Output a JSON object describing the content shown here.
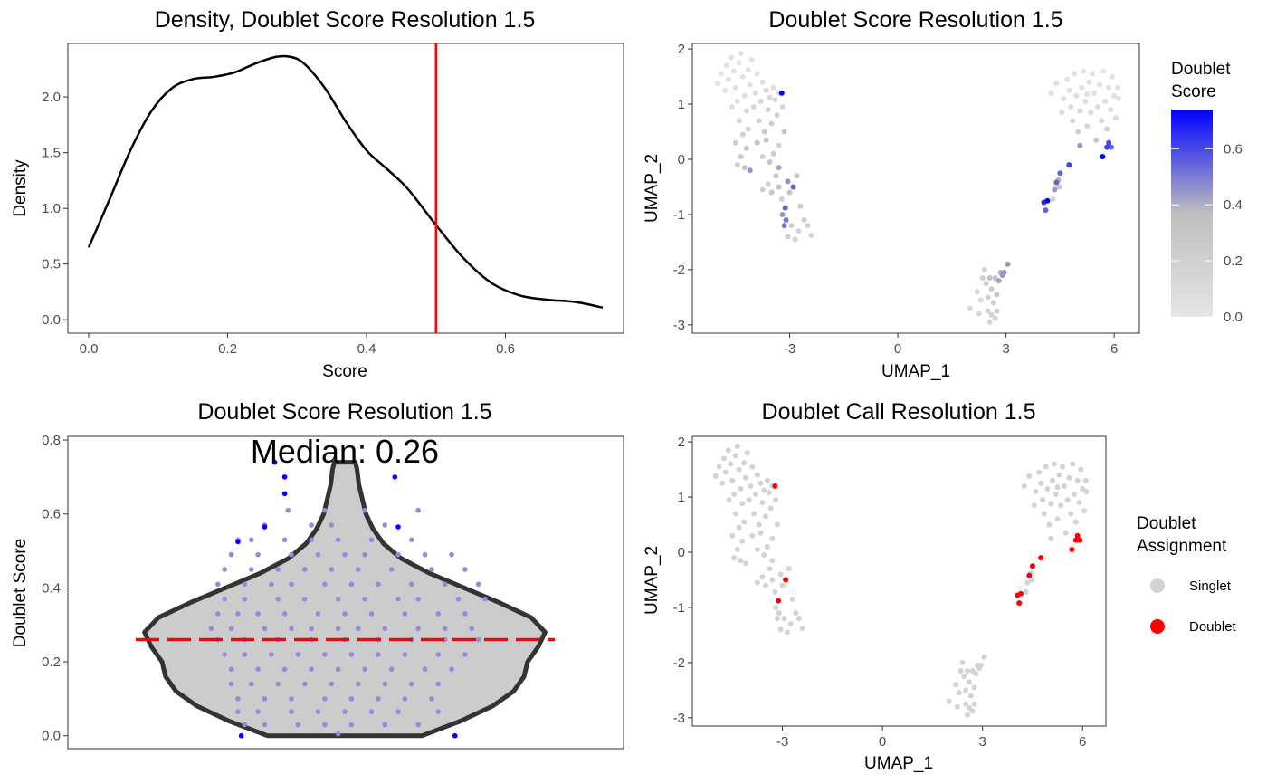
{
  "colors": {
    "low": "#e5e5e5",
    "mid": "#bebebe",
    "high": "#0000ff",
    "density_line": "#000000",
    "threshold": "#ff0000",
    "violin_fill": "#cccccc",
    "violin_stroke": "#333333",
    "violin_points": "#8f8fd8",
    "outlier": "#0000ff",
    "singlet": "#d3d3d3",
    "doublet": "#ff0000"
  },
  "chart_data": [
    {
      "id": "density",
      "type": "line",
      "title": "Density, Doublet Score Resolution 1.5",
      "xlabel": "Score",
      "ylabel": "Density",
      "xlim": [
        -0.03,
        0.77
      ],
      "ylim": [
        -0.12,
        2.48
      ],
      "xticks": [
        0,
        0.2,
        0.4,
        0.6
      ],
      "xtick_labels": [
        "0.0",
        "0.2",
        "0.4",
        "0.6"
      ],
      "yticks": [
        0,
        0.5,
        1,
        1.5,
        2
      ],
      "ytick_labels": [
        "0.0",
        "0.5",
        "1.0",
        "1.5",
        "2.0"
      ],
      "threshold": 0.5,
      "x": [
        0,
        0.03,
        0.06,
        0.09,
        0.12,
        0.15,
        0.18,
        0.21,
        0.24,
        0.27,
        0.29,
        0.31,
        0.34,
        0.37,
        0.4,
        0.43,
        0.46,
        0.5,
        0.54,
        0.58,
        0.62,
        0.66,
        0.7,
        0.74
      ],
      "y": [
        0.65,
        1.08,
        1.52,
        1.87,
        2.08,
        2.16,
        2.18,
        2.22,
        2.3,
        2.36,
        2.36,
        2.3,
        2.08,
        1.78,
        1.52,
        1.35,
        1.17,
        0.85,
        0.55,
        0.33,
        0.22,
        0.18,
        0.16,
        0.11
      ]
    },
    {
      "id": "umap-score",
      "type": "scatter",
      "title": "Doublet Score Resolution 1.5",
      "xlabel": "UMAP_1",
      "ylabel": "UMAP_2",
      "xlim": [
        -5.7,
        6.7
      ],
      "ylim": [
        -3.15,
        2.1
      ],
      "xticks": [
        -3,
        0,
        3,
        6
      ],
      "xtick_labels": [
        "-3",
        "0",
        "3",
        "6"
      ],
      "yticks": [
        -3,
        -2,
        -1,
        0,
        1,
        2
      ],
      "ytick_labels": [
        "-3",
        "-2",
        "-1",
        "0",
        "1",
        "2"
      ],
      "legend": {
        "title_lines": [
          "Doublet",
          "Score"
        ],
        "placement": "right",
        "ticks": [
          0,
          0.2,
          0.4,
          0.6
        ],
        "tick_labels": [
          "0.0",
          "0.2",
          "0.4",
          "0.6"
        ],
        "range": [
          0,
          0.74
        ]
      }
    },
    {
      "id": "violin",
      "type": "violin",
      "title": "Doublet Score Resolution 1.5",
      "ylabel": "Doublet Score",
      "annotation": "Median: 0.26",
      "median": 0.26,
      "ylim": [
        -0.035,
        0.81
      ],
      "yticks": [
        0,
        0.2,
        0.4,
        0.6,
        0.8
      ],
      "ytick_labels": [
        "0.0",
        "0.2",
        "0.4",
        "0.6",
        "0.8"
      ],
      "outliers": [
        [
          -0.21,
          0.74
        ],
        [
          -0.18,
          0.7
        ],
        [
          -0.18,
          0.655
        ],
        [
          -0.24,
          0.565
        ],
        [
          -0.32,
          0.525
        ],
        [
          0.15,
          0.7
        ],
        [
          0.16,
          0.565
        ],
        [
          -0.31,
          0
        ],
        [
          0.33,
          0
        ]
      ]
    },
    {
      "id": "umap-call",
      "type": "scatter",
      "title": "Doublet Call Resolution 1.5",
      "xlabel": "UMAP_1",
      "ylabel": "UMAP_2",
      "xlim": [
        -5.7,
        6.7
      ],
      "ylim": [
        -3.15,
        2.1
      ],
      "xticks": [
        -3,
        0,
        3,
        6
      ],
      "xtick_labels": [
        "-3",
        "0",
        "3",
        "6"
      ],
      "yticks": [
        -3,
        -2,
        -1,
        0,
        1,
        2
      ],
      "ytick_labels": [
        "-3",
        "-2",
        "-1",
        "0",
        "1",
        "2"
      ],
      "legend": {
        "title_lines": [
          "Doublet",
          "Assignment"
        ],
        "placement": "right",
        "entries": [
          "Singlet",
          "Doublet"
        ]
      }
    }
  ],
  "umap_points": [
    [
      -5,
      1.38,
      0.02
    ],
    [
      -4.9,
      1.55,
      0.02
    ],
    [
      -4.8,
      1.25,
      0.02
    ],
    [
      -4.75,
      1.7,
      0.02
    ],
    [
      -4.7,
      1.45,
      0.03
    ],
    [
      -4.62,
      1.85,
      0.02
    ],
    [
      -4.55,
      1.6,
      0.03
    ],
    [
      -4.5,
      1.3,
      0.04
    ],
    [
      -4.45,
      1.05,
      0.05
    ],
    [
      -4.4,
      1.75,
      0.02
    ],
    [
      -4.35,
      1.92,
      0.02
    ],
    [
      -4.3,
      1.5,
      0.04
    ],
    [
      -4.25,
      1.15,
      0.06
    ],
    [
      -4.2,
      0.88,
      0.1
    ],
    [
      -4.15,
      1.62,
      0.03
    ],
    [
      -4.1,
      1.35,
      0.06
    ],
    [
      -4.05,
      1.8,
      0.03
    ],
    [
      -4,
      0.95,
      0.12
    ],
    [
      -3.95,
      1.2,
      0.1
    ],
    [
      -3.9,
      1.55,
      0.05
    ],
    [
      -3.85,
      0.7,
      0.2
    ],
    [
      -3.8,
      1.05,
      0.15
    ],
    [
      -3.75,
      1.4,
      0.06
    ],
    [
      -3.7,
      0.5,
      0.25
    ],
    [
      -3.65,
      1.25,
      0.12
    ],
    [
      -3.6,
      0.9,
      0.18
    ],
    [
      -3.55,
      1.12,
      0.1
    ],
    [
      -3.5,
      0.65,
      0.22
    ],
    [
      -3.45,
      1.3,
      0.08
    ],
    [
      -3.4,
      1.08,
      0.12
    ],
    [
      -3.35,
      0.8,
      0.2
    ],
    [
      -3.3,
      1.2,
      0.1
    ],
    [
      -3.2,
      0.95,
      0.12
    ],
    [
      -3.15,
      0.5,
      0.3
    ],
    [
      -3.22,
      1.2,
      0.74
    ],
    [
      -4.4,
      0.7,
      0.15
    ],
    [
      -4.6,
      0.95,
      0.08
    ],
    [
      -4.3,
      0.45,
      0.2
    ],
    [
      -4.5,
      0.3,
      0.22
    ],
    [
      -4.2,
      0.2,
      0.28
    ],
    [
      -4.35,
      0.05,
      0.25
    ],
    [
      -4.25,
      -0.15,
      0.3
    ],
    [
      -4.45,
      -0.1,
      0.22
    ],
    [
      -4.1,
      -0.2,
      0.45
    ],
    [
      -4.15,
      0.55,
      0.18
    ],
    [
      -3.9,
      0.3,
      0.3
    ],
    [
      -3.75,
      0.05,
      0.22
    ],
    [
      -3.55,
      -0.05,
      0.28
    ],
    [
      -3.65,
      0.35,
      0.3
    ],
    [
      -3.3,
      0.25,
      0.18
    ],
    [
      -3.45,
      0.1,
      0.25
    ],
    [
      -3.38,
      -0.3,
      0.3
    ],
    [
      -3.6,
      -0.45,
      0.2
    ],
    [
      -3.5,
      -0.6,
      0.28
    ],
    [
      -3.3,
      -0.5,
      0.35
    ],
    [
      -3.22,
      -0.72,
      0.2
    ],
    [
      -3.12,
      -0.88,
      0.55
    ],
    [
      -3.2,
      -1,
      0.45
    ],
    [
      -3.1,
      -1.1,
      0.5
    ],
    [
      -3.15,
      -1.2,
      0.5
    ],
    [
      -3,
      -0.6,
      0.3
    ],
    [
      -3.05,
      -0.4,
      0.45
    ],
    [
      -2.9,
      -0.5,
      0.55
    ],
    [
      -2.8,
      -0.3,
      0.3
    ],
    [
      -2.7,
      -0.85,
      0.25
    ],
    [
      -2.6,
      -1.1,
      0.2
    ],
    [
      -2.75,
      -1.3,
      0.15
    ],
    [
      -2.85,
      -1.45,
      0.15
    ],
    [
      -2.5,
      -1.2,
      0.18
    ],
    [
      -2.4,
      -1.38,
      0.12
    ],
    [
      -3.75,
      -0.55,
      0.22
    ],
    [
      -3.05,
      -1.4,
      0.2
    ],
    [
      -2.95,
      -1.2,
      0.22
    ],
    [
      -3.3,
      -0.15,
      0.42
    ],
    [
      4.25,
      1.2,
      0.05
    ],
    [
      4.4,
      1.38,
      0.05
    ],
    [
      4.55,
      0.85,
      0.1
    ],
    [
      4.6,
      1.1,
      0.06
    ],
    [
      4.7,
      1.45,
      0.04
    ],
    [
      4.8,
      0.95,
      0.08
    ],
    [
      4.75,
      1.25,
      0.06
    ],
    [
      4.9,
      1.55,
      0.03
    ],
    [
      4.95,
      1.15,
      0.06
    ],
    [
      4.85,
      0.7,
      0.15
    ],
    [
      5,
      0.5,
      0.2
    ],
    [
      5.05,
      0.88,
      0.12
    ],
    [
      5.1,
      1.3,
      0.05
    ],
    [
      5.15,
      1.6,
      0.02
    ],
    [
      5.2,
      1.05,
      0.08
    ],
    [
      5.25,
      0.6,
      0.15
    ],
    [
      5.3,
      1.4,
      0.04
    ],
    [
      5.35,
      0.85,
      0.1
    ],
    [
      5.4,
      1.55,
      0.02
    ],
    [
      5.45,
      1.2,
      0.05
    ],
    [
      5.5,
      0.35,
      0.3
    ],
    [
      5.55,
      0.95,
      0.1
    ],
    [
      5.6,
      1.35,
      0.04
    ],
    [
      5.65,
      0.7,
      0.12
    ],
    [
      5.7,
      1.6,
      0.02
    ],
    [
      5.75,
      1.05,
      0.06
    ],
    [
      5.8,
      0.55,
      0.2
    ],
    [
      5.85,
      1.3,
      0.04
    ],
    [
      5.9,
      0.9,
      0.08
    ],
    [
      5.95,
      1.5,
      0.03
    ],
    [
      6,
      1.15,
      0.05
    ],
    [
      6.05,
      0.75,
      0.1
    ],
    [
      6.1,
      1.3,
      0.04
    ],
    [
      6.12,
      1.1,
      0.05
    ],
    [
      5.25,
      1.18,
      0.05
    ],
    [
      5.68,
      0.05,
      0.74
    ],
    [
      5.85,
      0.3,
      0.6
    ],
    [
      5.92,
      0.22,
      0.55
    ],
    [
      5.8,
      0.22,
      0.62
    ],
    [
      5.05,
      0.25,
      0.45
    ],
    [
      4.75,
      -0.1,
      0.62
    ],
    [
      4.5,
      -0.25,
      0.55
    ],
    [
      4.4,
      -0.42,
      0.55
    ],
    [
      4.35,
      -0.55,
      0.45
    ],
    [
      4.45,
      -0.38,
      0.4
    ],
    [
      4.15,
      -0.75,
      0.74
    ],
    [
      4.05,
      -0.78,
      0.65
    ],
    [
      4.1,
      -0.92,
      0.55
    ],
    [
      4.48,
      -0.5,
      0.3
    ],
    [
      4.3,
      -0.72,
      0.18
    ],
    [
      2,
      -2.7,
      0.1
    ],
    [
      2.2,
      -2.4,
      0.15
    ],
    [
      2.3,
      -2.55,
      0.12
    ],
    [
      2.4,
      -2,
      0.15
    ],
    [
      2.45,
      -2.25,
      0.2
    ],
    [
      2.5,
      -2.75,
      0.12
    ],
    [
      2.55,
      -2.95,
      0.15
    ],
    [
      2.6,
      -2.35,
      0.25
    ],
    [
      2.65,
      -2.6,
      0.2
    ],
    [
      2.7,
      -2.15,
      0.3
    ],
    [
      2.75,
      -2.45,
      0.28
    ],
    [
      2.8,
      -2.2,
      0.42
    ],
    [
      2.85,
      -2.05,
      0.4
    ],
    [
      2.9,
      -2.1,
      0.45
    ],
    [
      2.95,
      -2.05,
      0.45
    ],
    [
      3.05,
      -1.9,
      0.45
    ],
    [
      2.35,
      -2.15,
      0.2
    ],
    [
      2.6,
      -2.82,
      0.18
    ],
    [
      2.7,
      -2.88,
      0.15
    ],
    [
      2.25,
      -2.8,
      0.12
    ],
    [
      2.5,
      -2.5,
      0.2
    ],
    [
      2.75,
      -2.75,
      0.22
    ],
    [
      2.55,
      -2.15,
      0.35
    ]
  ],
  "violin_points": [
    [
      -0.17,
      0.61
    ],
    [
      -0.06,
      0.61
    ],
    [
      0.06,
      0.61
    ],
    [
      0.22,
      0.61
    ],
    [
      -0.24,
      0.57
    ],
    [
      -0.1,
      0.57
    ],
    [
      -0.04,
      0.57
    ],
    [
      0.12,
      0.57
    ],
    [
      -0.32,
      0.53
    ],
    [
      -0.28,
      0.53
    ],
    [
      -0.18,
      0.53
    ],
    [
      -0.1,
      0.53
    ],
    [
      -0.02,
      0.53
    ],
    [
      0.08,
      0.53
    ],
    [
      0.2,
      0.53
    ],
    [
      -0.34,
      0.49
    ],
    [
      -0.26,
      0.49
    ],
    [
      -0.16,
      0.49
    ],
    [
      -0.08,
      0.49
    ],
    [
      0,
      0.49
    ],
    [
      0.06,
      0.49
    ],
    [
      0.16,
      0.49
    ],
    [
      0.24,
      0.49
    ],
    [
      0.32,
      0.49
    ],
    [
      -0.36,
      0.45
    ],
    [
      -0.28,
      0.45
    ],
    [
      -0.2,
      0.45
    ],
    [
      -0.12,
      0.45
    ],
    [
      -0.04,
      0.45
    ],
    [
      0.04,
      0.45
    ],
    [
      0.14,
      0.45
    ],
    [
      0.26,
      0.45
    ],
    [
      0.36,
      0.45
    ],
    [
      -0.38,
      0.41
    ],
    [
      -0.3,
      0.41
    ],
    [
      -0.22,
      0.41
    ],
    [
      -0.16,
      0.41
    ],
    [
      -0.06,
      0.41
    ],
    [
      0.02,
      0.41
    ],
    [
      0.1,
      0.41
    ],
    [
      0.2,
      0.41
    ],
    [
      0.3,
      0.41
    ],
    [
      0.4,
      0.41
    ],
    [
      -0.36,
      0.37
    ],
    [
      -0.3,
      0.37
    ],
    [
      -0.2,
      0.37
    ],
    [
      -0.12,
      0.37
    ],
    [
      -0.02,
      0.37
    ],
    [
      0.06,
      0.37
    ],
    [
      0.16,
      0.37
    ],
    [
      0.22,
      0.37
    ],
    [
      0.34,
      0.37
    ],
    [
      0.42,
      0.37
    ],
    [
      -0.38,
      0.33
    ],
    [
      -0.32,
      0.33
    ],
    [
      -0.26,
      0.33
    ],
    [
      -0.18,
      0.33
    ],
    [
      -0.08,
      0.33
    ],
    [
      0,
      0.33
    ],
    [
      0.08,
      0.33
    ],
    [
      0.18,
      0.33
    ],
    [
      0.28,
      0.33
    ],
    [
      0.36,
      0.33
    ],
    [
      -0.4,
      0.29
    ],
    [
      -0.34,
      0.29
    ],
    [
      -0.24,
      0.29
    ],
    [
      -0.16,
      0.29
    ],
    [
      -0.1,
      0.29
    ],
    [
      -0.02,
      0.29
    ],
    [
      0.04,
      0.29
    ],
    [
      0.12,
      0.29
    ],
    [
      0.22,
      0.29
    ],
    [
      0.3,
      0.29
    ],
    [
      0.38,
      0.29
    ],
    [
      -0.38,
      0.26
    ],
    [
      -0.3,
      0.26
    ],
    [
      -0.2,
      0.26
    ],
    [
      -0.1,
      0.26
    ],
    [
      0,
      0.26
    ],
    [
      0.1,
      0.26
    ],
    [
      0.2,
      0.26
    ],
    [
      0.3,
      0.26
    ],
    [
      0.4,
      0.26
    ],
    [
      -0.36,
      0.22
    ],
    [
      -0.3,
      0.22
    ],
    [
      -0.22,
      0.22
    ],
    [
      -0.14,
      0.22
    ],
    [
      -0.06,
      0.22
    ],
    [
      0.02,
      0.22
    ],
    [
      0.1,
      0.22
    ],
    [
      0.18,
      0.22
    ],
    [
      0.28,
      0.22
    ],
    [
      0.36,
      0.22
    ],
    [
      -0.34,
      0.18
    ],
    [
      -0.26,
      0.18
    ],
    [
      -0.18,
      0.18
    ],
    [
      -0.1,
      0.18
    ],
    [
      -0.02,
      0.18
    ],
    [
      0.06,
      0.18
    ],
    [
      0.14,
      0.18
    ],
    [
      0.24,
      0.18
    ],
    [
      0.32,
      0.18
    ],
    [
      -0.34,
      0.14
    ],
    [
      -0.28,
      0.14
    ],
    [
      -0.2,
      0.14
    ],
    [
      -0.12,
      0.14
    ],
    [
      -0.04,
      0.14
    ],
    [
      0.04,
      0.14
    ],
    [
      0.12,
      0.14
    ],
    [
      0.2,
      0.14
    ],
    [
      0.28,
      0.14
    ],
    [
      -0.32,
      0.1
    ],
    [
      -0.24,
      0.1
    ],
    [
      -0.16,
      0.1
    ],
    [
      -0.06,
      0.1
    ],
    [
      0.02,
      0.1
    ],
    [
      0.1,
      0.1
    ],
    [
      0.18,
      0.1
    ],
    [
      0.26,
      0.1
    ],
    [
      -0.32,
      0.065
    ],
    [
      -0.26,
      0.065
    ],
    [
      -0.16,
      0.065
    ],
    [
      -0.08,
      0.065
    ],
    [
      0,
      0.065
    ],
    [
      0.08,
      0.065
    ],
    [
      0.16,
      0.065
    ],
    [
      0.28,
      0.065
    ],
    [
      -0.3,
      0.03
    ],
    [
      -0.24,
      0.03
    ],
    [
      -0.14,
      0.03
    ],
    [
      -0.06,
      0.03
    ],
    [
      0.02,
      0.03
    ],
    [
      0.12,
      0.03
    ],
    [
      0.22,
      0.03
    ],
    [
      -0.02,
      0.005
    ]
  ],
  "violin_shape": {
    "y": [
      0,
      0.04,
      0.08,
      0.12,
      0.16,
      0.2,
      0.24,
      0.28,
      0.32,
      0.36,
      0.4,
      0.44,
      0.48,
      0.52,
      0.56,
      0.6,
      0.64,
      0.68,
      0.72,
      0.74
    ],
    "hw": [
      0.22,
      0.33,
      0.42,
      0.48,
      0.51,
      0.52,
      0.55,
      0.57,
      0.53,
      0.44,
      0.34,
      0.24,
      0.16,
      0.11,
      0.08,
      0.06,
      0.05,
      0.04,
      0.035,
      0.03
    ],
    "max_hw": 0.6
  }
}
